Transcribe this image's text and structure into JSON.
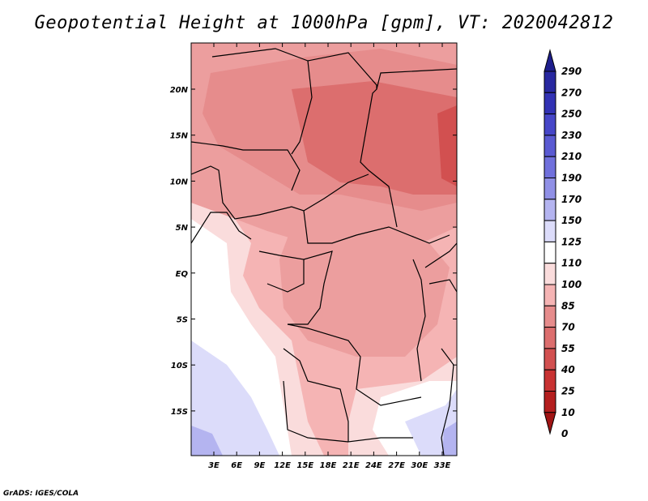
{
  "title": "Geopotential Height at 1000hPa [gpm], VT: 2020042812",
  "credit": "GrADS: IGES/COLA",
  "map": {
    "lat_labels": [
      "20N",
      "15N",
      "10N",
      "5N",
      "EQ",
      "5S",
      "10S",
      "15S"
    ],
    "lon_labels": [
      "3E",
      "6E",
      "9E",
      "12E",
      "15E",
      "18E",
      "21E",
      "24E",
      "27E",
      "30E",
      "33E"
    ]
  },
  "colorbar": {
    "levels": [
      "290",
      "270",
      "250",
      "230",
      "210",
      "190",
      "170",
      "150",
      "125",
      "110",
      "100",
      "85",
      "70",
      "55",
      "40",
      "25",
      "10",
      "0"
    ],
    "colors": [
      "#1e1e8c",
      "#2828a0",
      "#3232b4",
      "#4646c8",
      "#5a5ad2",
      "#7070dc",
      "#9090e6",
      "#b4b4f0",
      "#dcdcfa",
      "#ffffff",
      "#fadcdc",
      "#f5b4b4",
      "#e68c8c",
      "#dc6e6e",
      "#d25050",
      "#c83232",
      "#b41e1e",
      "#a01414"
    ]
  }
}
